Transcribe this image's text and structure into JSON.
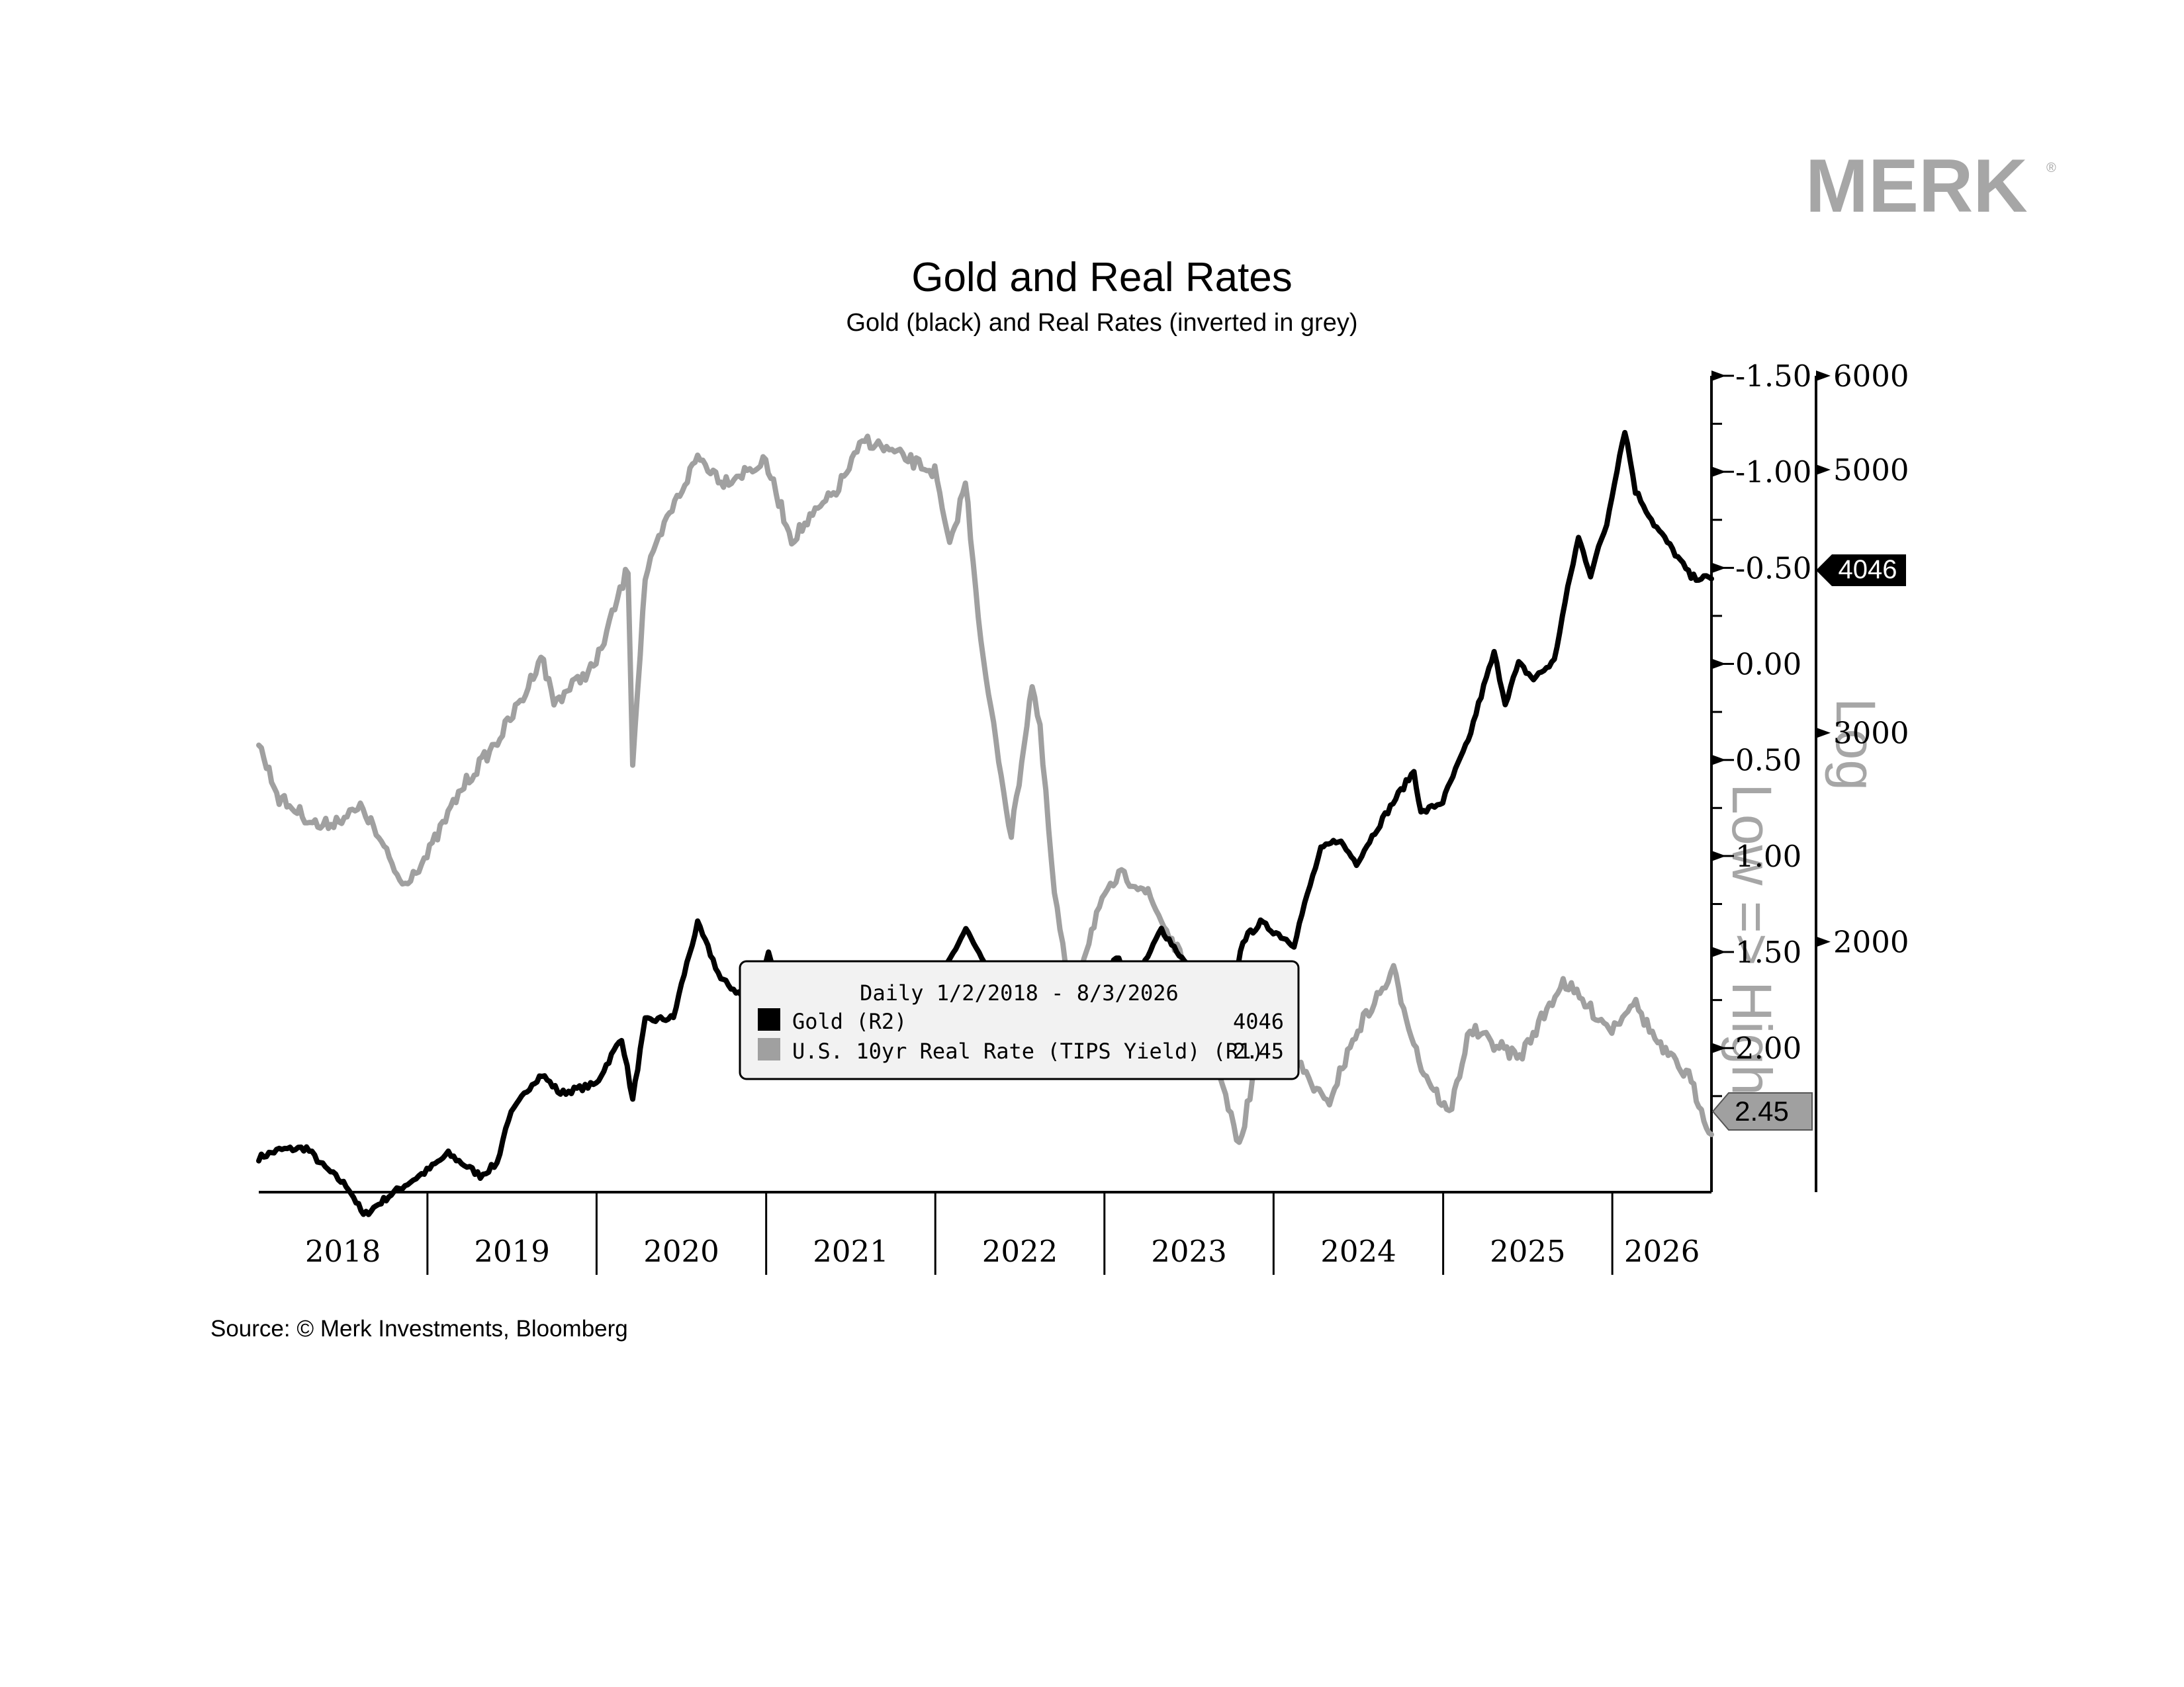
{
  "brand": {
    "logo_text": "MERK",
    "logo_mark": "®",
    "logo_color": "#a6a6a6"
  },
  "source_note": "Source: © Merk Investments, Bloomberg",
  "chart_data": {
    "type": "line",
    "title": "Gold and Real Rates",
    "subtitle": "Gold (black) and Real Rates (inverted in grey)",
    "x_axis": {
      "type": "date",
      "range": [
        "2018-01-02",
        "2026-08-03"
      ],
      "tick_labels": [
        "2018",
        "2019",
        "2020",
        "2021",
        "2022",
        "2023",
        "2024",
        "2025",
        "2026"
      ]
    },
    "axis_r1": {
      "inverted": true,
      "range": [
        -1.5,
        2.75
      ],
      "ticks": [
        -1.5,
        -1.0,
        -0.5,
        0.0,
        0.5,
        1.0,
        1.5,
        2.0
      ],
      "tick_labels": [
        "-1.50",
        "-1.00",
        "-0.50",
        "0.00",
        "0.50",
        "1.00",
        "1.50",
        "2.00"
      ],
      "label": "Low => High"
    },
    "axis_r2": {
      "scale": "log",
      "range": [
        1230,
        6000
      ],
      "ticks": [
        2000,
        3000,
        5000,
        6000
      ],
      "tick_labels": [
        "2000",
        "3000",
        "5000",
        "6000"
      ],
      "label": "Log"
    },
    "legend": {
      "header": "Daily 1/2/2018 - 8/3/2026",
      "placement": "bottom-center",
      "items": [
        {
          "label": "Gold (R2)",
          "value": "4046",
          "color": "#000000"
        },
        {
          "label": "U.S. 10yr Real Rate (TIPS Yield) (R1)",
          "value": "2.45",
          "color": "#a0a0a0"
        }
      ]
    },
    "last_value_tags": {
      "gold": "4046",
      "real_rate": "2.45"
    },
    "series": [
      {
        "name": "Gold (R2)",
        "axis": "R2",
        "color": "#000000",
        "points": [
          [
            "2018-01-02",
            1315
          ],
          [
            "2018-02-15",
            1335
          ],
          [
            "2018-04-15",
            1340
          ],
          [
            "2018-05-20",
            1295
          ],
          [
            "2018-07-15",
            1240
          ],
          [
            "2018-08-16",
            1175
          ],
          [
            "2018-10-15",
            1225
          ],
          [
            "2018-12-31",
            1282
          ],
          [
            "2019-02-15",
            1325
          ],
          [
            "2019-04-25",
            1270
          ],
          [
            "2019-05-31",
            1300
          ],
          [
            "2019-06-25",
            1420
          ],
          [
            "2019-08-15",
            1520
          ],
          [
            "2019-09-05",
            1545
          ],
          [
            "2019-10-15",
            1490
          ],
          [
            "2019-12-31",
            1517
          ],
          [
            "2020-02-24",
            1660
          ],
          [
            "2020-03-19",
            1470
          ],
          [
            "2020-04-15",
            1715
          ],
          [
            "2020-06-15",
            1725
          ],
          [
            "2020-08-06",
            2070
          ],
          [
            "2020-09-25",
            1860
          ],
          [
            "2020-11-30",
            1775
          ],
          [
            "2021-01-06",
            1955
          ],
          [
            "2021-03-08",
            1680
          ],
          [
            "2021-06-01",
            1900
          ],
          [
            "2021-08-09",
            1725
          ],
          [
            "2021-11-15",
            1865
          ],
          [
            "2021-12-15",
            1765
          ],
          [
            "2022-03-08",
            2050
          ],
          [
            "2022-05-15",
            1810
          ],
          [
            "2022-07-01",
            1810
          ],
          [
            "2022-09-28",
            1625
          ],
          [
            "2022-11-15",
            1770
          ],
          [
            "2023-02-01",
            1945
          ],
          [
            "2023-02-28",
            1810
          ],
          [
            "2023-05-04",
            2050
          ],
          [
            "2023-06-28",
            1910
          ],
          [
            "2023-08-21",
            1890
          ],
          [
            "2023-10-05",
            1820
          ],
          [
            "2023-10-27",
            2005
          ],
          [
            "2023-12-04",
            2075
          ],
          [
            "2024-02-14",
            1990
          ],
          [
            "2024-04-12",
            2390
          ],
          [
            "2024-05-20",
            2440
          ],
          [
            "2024-06-28",
            2330
          ],
          [
            "2024-10-30",
            2785
          ],
          [
            "2024-11-14",
            2565
          ],
          [
            "2024-12-31",
            2625
          ],
          [
            "2025-02-24",
            2950
          ],
          [
            "2025-04-21",
            3500
          ],
          [
            "2025-05-15",
            3180
          ],
          [
            "2025-06-13",
            3430
          ],
          [
            "2025-07-15",
            3330
          ],
          [
            "2025-08-29",
            3450
          ],
          [
            "2025-10-20",
            4380
          ],
          [
            "2025-11-15",
            4080
          ],
          [
            "2025-12-20",
            4500
          ],
          [
            "2026-01-28",
            5400
          ],
          [
            "2026-02-20",
            4800
          ],
          [
            "2026-04-01",
            4500
          ],
          [
            "2026-06-20",
            4060
          ],
          [
            "2026-08-03",
            4046
          ]
        ]
      },
      {
        "name": "U.S. 10yr Real Rate (TIPS Yield) (R1)",
        "axis": "R1",
        "color": "#a0a0a0",
        "points": [
          [
            "2018-01-02",
            0.42
          ],
          [
            "2018-02-15",
            0.7
          ],
          [
            "2018-05-15",
            0.85
          ],
          [
            "2018-08-15",
            0.75
          ],
          [
            "2018-11-08",
            1.15
          ],
          [
            "2018-12-31",
            1.0
          ],
          [
            "2019-03-15",
            0.65
          ],
          [
            "2019-06-01",
            0.4
          ],
          [
            "2019-08-01",
            0.15
          ],
          [
            "2019-09-03",
            -0.05
          ],
          [
            "2019-10-01",
            0.2
          ],
          [
            "2019-12-31",
            0.0
          ],
          [
            "2020-03-09",
            -0.5
          ],
          [
            "2020-03-19",
            0.5
          ],
          [
            "2020-04-15",
            -0.45
          ],
          [
            "2020-06-01",
            -0.75
          ],
          [
            "2020-08-06",
            -1.08
          ],
          [
            "2020-10-01",
            -0.95
          ],
          [
            "2020-12-31",
            -1.05
          ],
          [
            "2021-02-25",
            -0.65
          ],
          [
            "2021-06-01",
            -0.9
          ],
          [
            "2021-08-02",
            -1.17
          ],
          [
            "2021-11-15",
            -1.05
          ],
          [
            "2021-12-31",
            -1.0
          ],
          [
            "2022-02-01",
            -0.6
          ],
          [
            "2022-03-07",
            -0.95
          ],
          [
            "2022-04-15",
            0.0
          ],
          [
            "2022-06-14",
            0.9
          ],
          [
            "2022-07-29",
            0.1
          ],
          [
            "2022-08-15",
            0.35
          ],
          [
            "2022-09-15",
            1.2
          ],
          [
            "2022-10-21",
            1.75
          ],
          [
            "2022-12-15",
            1.3
          ],
          [
            "2023-02-01",
            1.1
          ],
          [
            "2023-03-20",
            1.15
          ],
          [
            "2023-04-05",
            1.2
          ],
          [
            "2023-06-30",
            1.6
          ],
          [
            "2023-08-15",
            1.95
          ],
          [
            "2023-10-19",
            2.52
          ],
          [
            "2023-12-27",
            1.68
          ],
          [
            "2024-02-01",
            2.0
          ],
          [
            "2024-04-25",
            2.3
          ],
          [
            "2024-07-01",
            1.9
          ],
          [
            "2024-09-16",
            1.6
          ],
          [
            "2024-11-15",
            2.1
          ],
          [
            "2025-01-14",
            2.35
          ],
          [
            "2025-02-28",
            1.9
          ],
          [
            "2025-04-15",
            1.97
          ],
          [
            "2025-06-15",
            2.05
          ],
          [
            "2025-08-01",
            1.85
          ],
          [
            "2025-09-17",
            1.65
          ],
          [
            "2025-11-15",
            1.8
          ],
          [
            "2025-12-31",
            1.9
          ],
          [
            "2026-02-15",
            1.75
          ],
          [
            "2026-04-15",
            2.0
          ],
          [
            "2026-06-15",
            2.15
          ],
          [
            "2026-08-03",
            2.45
          ]
        ]
      }
    ]
  }
}
